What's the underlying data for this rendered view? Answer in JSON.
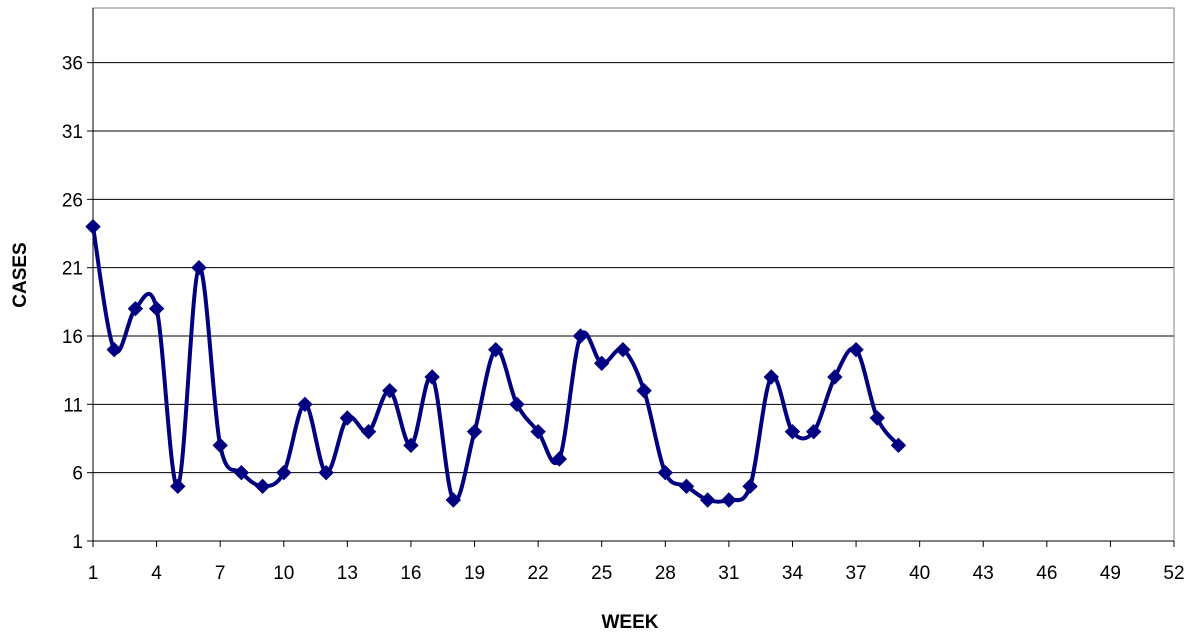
{
  "chart_data": {
    "type": "line",
    "title": "",
    "xlabel": "WEEK",
    "ylabel": "CASES",
    "xlim": [
      1,
      52
    ],
    "ylim": [
      1,
      40
    ],
    "x_ticks": [
      1,
      4,
      7,
      10,
      13,
      16,
      19,
      22,
      25,
      28,
      31,
      34,
      37,
      40,
      43,
      46,
      49,
      52
    ],
    "y_ticks": [
      1,
      6,
      11,
      16,
      21,
      26,
      31,
      36
    ],
    "grid": "horizontal",
    "legend": "none",
    "line_color": "#000080",
    "marker": "diamond",
    "smoothed": true,
    "series": [
      {
        "x": [
          1,
          2,
          3,
          4,
          5,
          6,
          7,
          8,
          9,
          10,
          11,
          12,
          13,
          14,
          15,
          16,
          17,
          18,
          19,
          20,
          21,
          22,
          23,
          24,
          25,
          26,
          27,
          28,
          29,
          30,
          31,
          32,
          33,
          34,
          35,
          36,
          37,
          38,
          39
        ],
        "values": [
          24,
          15,
          18,
          18,
          5,
          21,
          8,
          6,
          5,
          6,
          11,
          6,
          10,
          9,
          12,
          8,
          13,
          4,
          9,
          15,
          11,
          9,
          7,
          16,
          14,
          15,
          12,
          6,
          5,
          4,
          4,
          5,
          13,
          9,
          9,
          13,
          15,
          10,
          8
        ]
      }
    ]
  }
}
